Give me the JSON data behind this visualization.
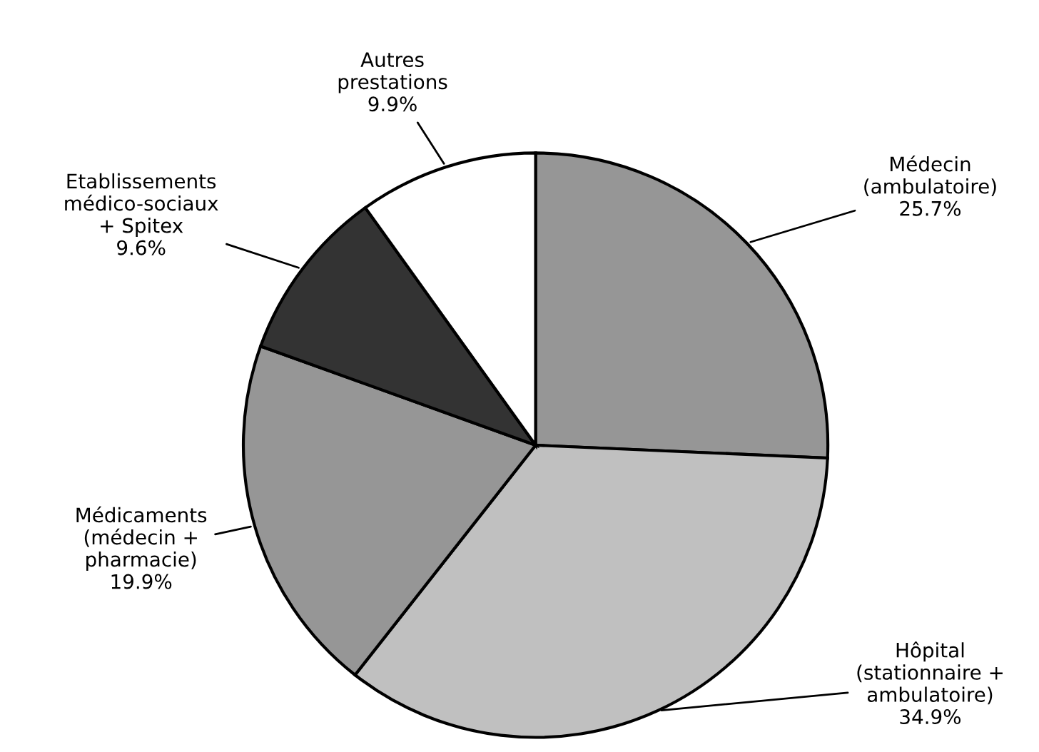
{
  "chart_data": {
    "type": "pie",
    "categories": [
      "Médecin\n(ambulatoire)",
      "Hôpital\n(stationnaire +\nambulatoire)",
      "Médicaments\n(médecin +\npharmacie)",
      "Etablissements\nmédico-sociaux\n+ Spitex",
      "Autres\nprestations"
    ],
    "values": [
      25.7,
      34.9,
      19.9,
      9.6,
      9.9
    ],
    "value_labels": [
      "25.7%",
      "34.9%",
      "19.9%",
      "9.6%",
      "9.9%"
    ],
    "colors": [
      "#969696",
      "#c0c0c0",
      "#969696",
      "#333333",
      "#ffffff"
    ]
  }
}
